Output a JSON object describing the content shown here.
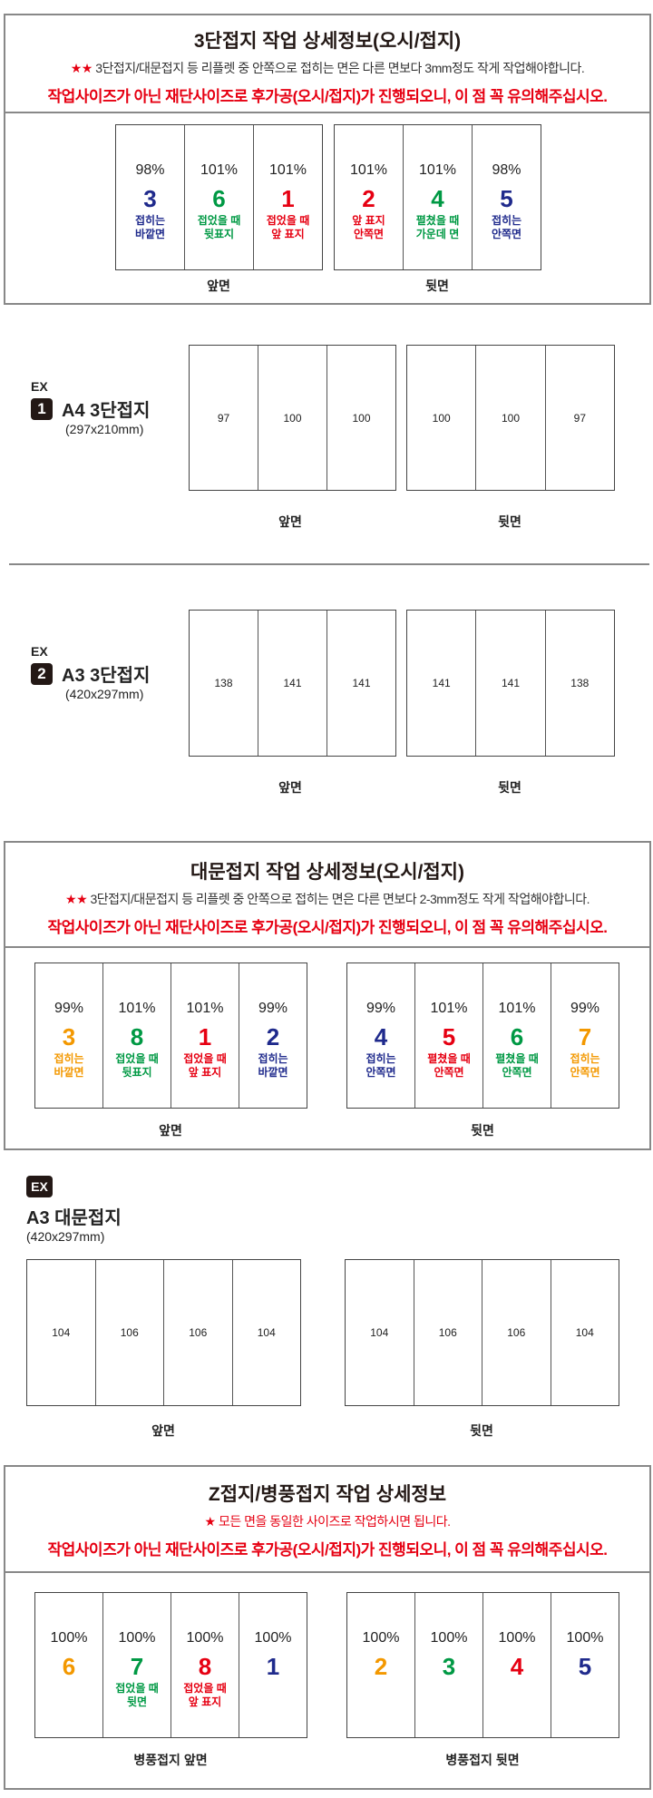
{
  "colors": {
    "navy": "#1f2a8c",
    "green": "#009944",
    "red": "#e60012",
    "orange": "#f39800",
    "black": "#222222"
  },
  "section1": {
    "title": "3단접지 작업 상세정보(오시/접지)",
    "stars": "★★",
    "note": "3단접지/대문접지 등 리플렛 중 안쪽으로 접히는 면은 다른 면보다 3mm정도 작게 작업해야합니다.",
    "warning": "작업사이즈가 아닌 재단사이즈로 후가공(오시/접지)가 진행되오니, 이 점 꼭 유의해주십시오.",
    "front_label": "앞면",
    "back_label": "뒷면",
    "front": [
      {
        "pct": "98%",
        "num": "3",
        "color": "navy",
        "desc": [
          "접히는",
          "바깥면"
        ]
      },
      {
        "pct": "101%",
        "num": "6",
        "color": "green",
        "desc": [
          "접었을 때",
          "뒷표지"
        ]
      },
      {
        "pct": "101%",
        "num": "1",
        "color": "red",
        "desc": [
          "접었을 때",
          "앞 표지"
        ]
      }
    ],
    "back": [
      {
        "pct": "101%",
        "num": "2",
        "color": "red",
        "desc": [
          "앞 표지",
          "안쪽면"
        ]
      },
      {
        "pct": "101%",
        "num": "4",
        "color": "green",
        "desc": [
          "펼쳤을 때",
          "가운데 면"
        ]
      },
      {
        "pct": "98%",
        "num": "5",
        "color": "navy",
        "desc": [
          "접히는",
          "안쪽면"
        ]
      }
    ]
  },
  "ex1": {
    "ex": "EX",
    "badge": "1",
    "title": "A4 3단접지",
    "size": "(297x210mm)",
    "front": [
      "97",
      "100",
      "100"
    ],
    "back": [
      "100",
      "100",
      "97"
    ],
    "front_label": "앞면",
    "back_label": "뒷면"
  },
  "ex2": {
    "ex": "EX",
    "badge": "2",
    "title": "A3 3단접지",
    "size": "(420x297mm)",
    "front": [
      "138",
      "141",
      "141"
    ],
    "back": [
      "141",
      "141",
      "138"
    ],
    "front_label": "앞면",
    "back_label": "뒷면"
  },
  "section2": {
    "title": "대문접지 작업 상세정보(오시/접지)",
    "stars": "★★",
    "note": "3단접지/대문접지 등 리플렛 중 안쪽으로 접히는 면은 다른 면보다 2-3mm정도 작게 작업해야합니다.",
    "warning": "작업사이즈가 아닌 재단사이즈로 후가공(오시/접지)가 진행되오니, 이 점 꼭 유의해주십시오.",
    "front_label": "앞면",
    "back_label": "뒷면",
    "front": [
      {
        "pct": "99%",
        "num": "3",
        "color": "orange",
        "desc": [
          "접히는",
          "바깥면"
        ]
      },
      {
        "pct": "101%",
        "num": "8",
        "color": "green",
        "desc": [
          "접었을 때",
          "뒷표지"
        ]
      },
      {
        "pct": "101%",
        "num": "1",
        "color": "red",
        "desc": [
          "접었을 때",
          "앞 표지"
        ]
      },
      {
        "pct": "99%",
        "num": "2",
        "color": "navy",
        "desc": [
          "접히는",
          "바깥면"
        ]
      }
    ],
    "back": [
      {
        "pct": "99%",
        "num": "4",
        "color": "navy",
        "desc": [
          "접히는",
          "안쪽면"
        ]
      },
      {
        "pct": "101%",
        "num": "5",
        "color": "red",
        "desc": [
          "펼쳤을 때",
          "안쪽면"
        ]
      },
      {
        "pct": "101%",
        "num": "6",
        "color": "green",
        "desc": [
          "펼쳤을 때",
          "안쪽면"
        ]
      },
      {
        "pct": "99%",
        "num": "7",
        "color": "orange",
        "desc": [
          "접히는",
          "안쪽면"
        ]
      }
    ]
  },
  "ex3": {
    "ex": "EX",
    "title": "A3 대문접지",
    "size": "(420x297mm)",
    "front": [
      "104",
      "106",
      "106",
      "104"
    ],
    "back": [
      "104",
      "106",
      "106",
      "104"
    ],
    "front_label": "앞면",
    "back_label": "뒷면"
  },
  "section3": {
    "title": "Z접지/병풍접지 작업 상세정보",
    "stars": "★",
    "note": "모든 면을 동일한 사이즈로 작업하시면 됩니다.",
    "warning": "작업사이즈가 아닌 재단사이즈로 후가공(오시/접지)가 진행되오니, 이 점 꼭 유의해주십시오.",
    "front_label": "병풍접지 앞면",
    "back_label": "병풍접지 뒷면",
    "front": [
      {
        "pct": "100%",
        "num": "6",
        "color": "orange",
        "desc": []
      },
      {
        "pct": "100%",
        "num": "7",
        "color": "green",
        "desc": [
          "접었을 때",
          "뒷면"
        ]
      },
      {
        "pct": "100%",
        "num": "8",
        "color": "red",
        "desc": [
          "접었을 때",
          "앞 표지"
        ]
      },
      {
        "pct": "100%",
        "num": "1",
        "color": "navy",
        "desc": []
      }
    ],
    "back": [
      {
        "pct": "100%",
        "num": "2",
        "color": "orange",
        "desc": []
      },
      {
        "pct": "100%",
        "num": "3",
        "color": "green",
        "desc": []
      },
      {
        "pct": "100%",
        "num": "4",
        "color": "red",
        "desc": []
      },
      {
        "pct": "100%",
        "num": "5",
        "color": "navy",
        "desc": []
      }
    ]
  }
}
